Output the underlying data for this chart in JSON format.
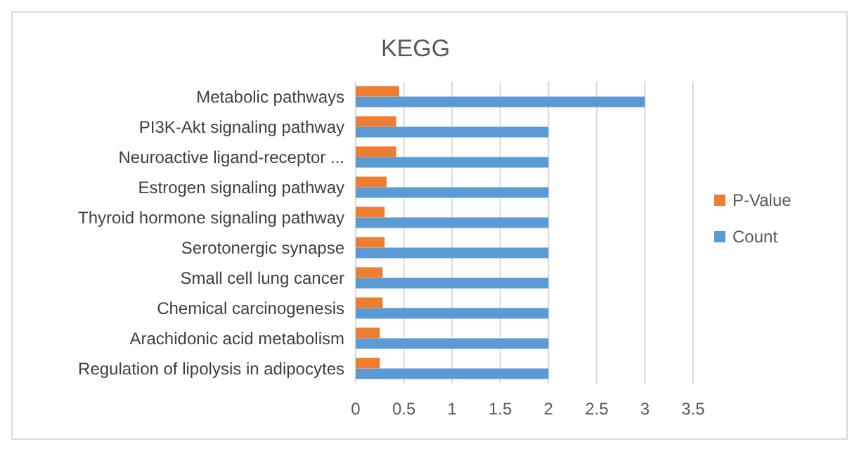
{
  "chart_data": {
    "type": "bar",
    "orientation": "horizontal",
    "title": "KEGG",
    "categories": [
      "Metabolic pathways",
      "PI3K-Akt signaling pathway",
      "Neuroactive ligand-receptor ...",
      "Estrogen signaling pathway",
      "Thyroid hormone signaling pathway",
      "Serotonergic synapse",
      "Small cell lung cancer",
      "Chemical carcinogenesis",
      "Arachidonic acid metabolism",
      "Regulation of lipolysis in adipocytes"
    ],
    "series": [
      {
        "name": "Count",
        "color": "#5b9bd5",
        "values": [
          3,
          2,
          2,
          2,
          2,
          2,
          2,
          2,
          2,
          2
        ]
      },
      {
        "name": "P-Value",
        "color": "#ed7d31",
        "values": [
          0.45,
          0.42,
          0.42,
          0.32,
          0.3,
          0.3,
          0.28,
          0.28,
          0.25,
          0.25
        ]
      }
    ],
    "xlim": [
      0,
      3.5
    ],
    "xticks": [
      0,
      0.5,
      1,
      1.5,
      2,
      2.5,
      3,
      3.5
    ],
    "grid": "x",
    "legend": "right"
  }
}
